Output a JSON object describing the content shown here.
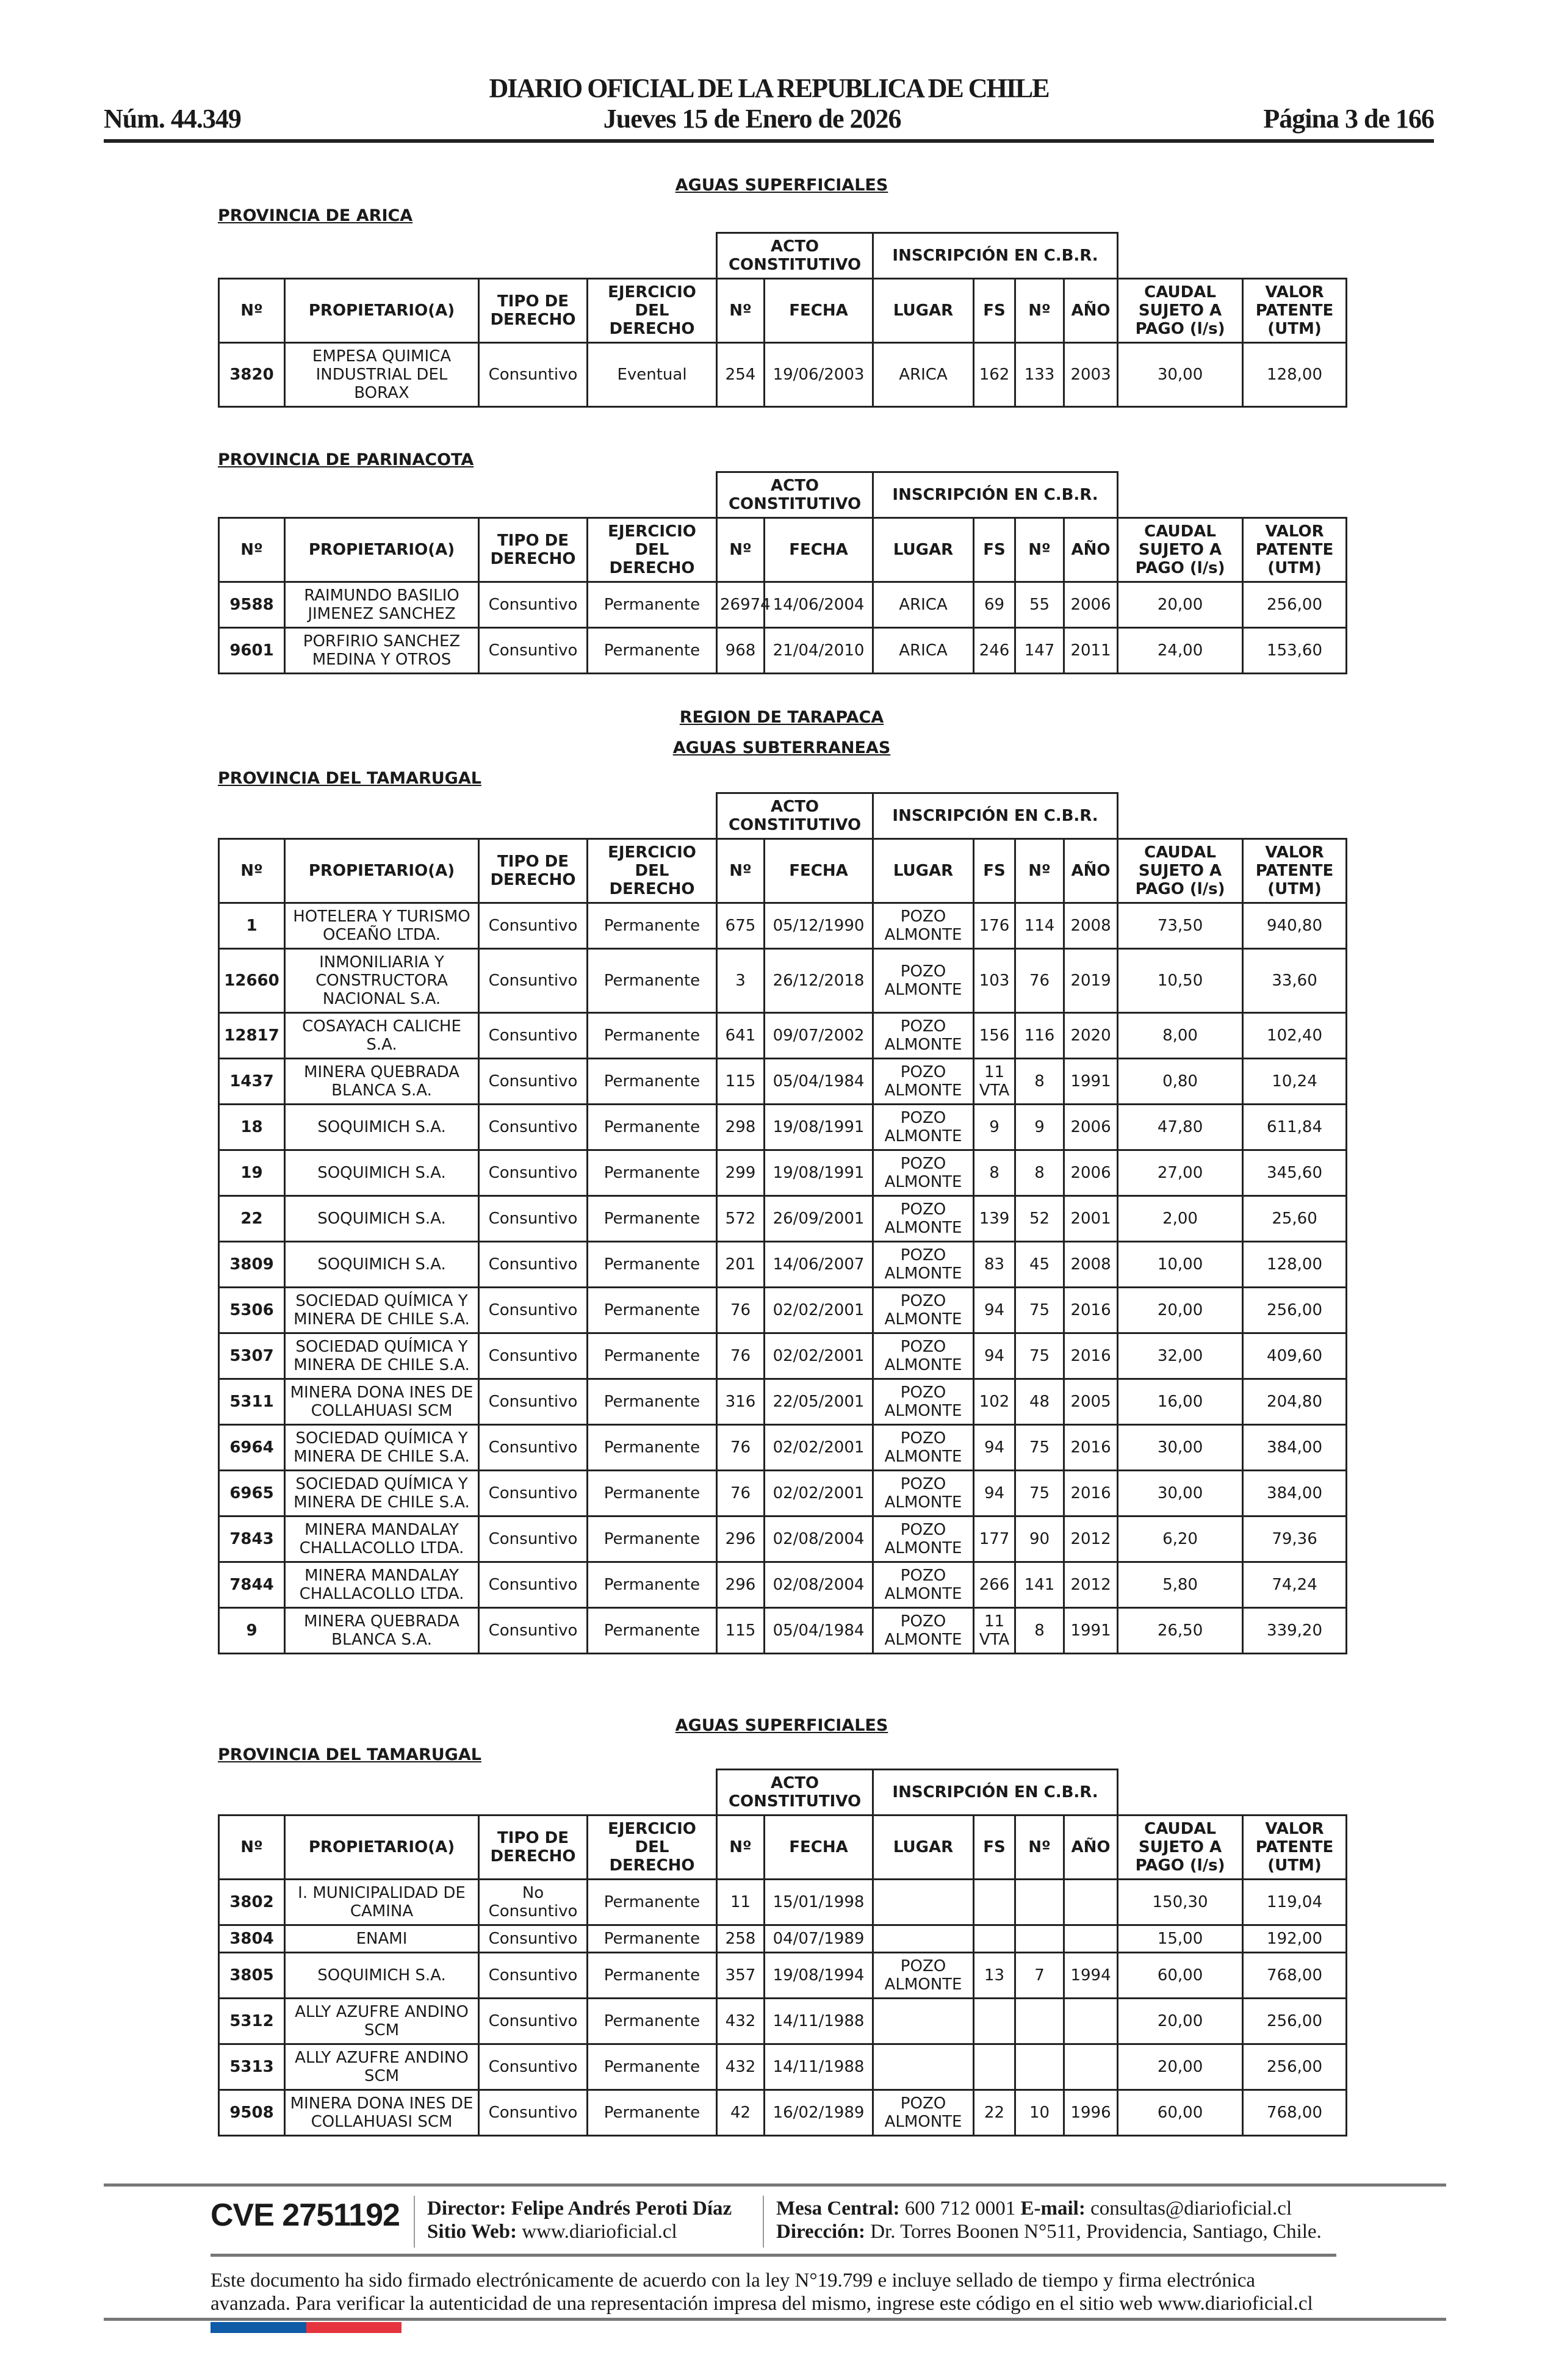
{
  "header": {
    "title": "DIARIO OFICIAL DE LA REPUBLICA DE CHILE",
    "number": "Núm. 44.349",
    "date": "Jueves 15 de Enero de 2026",
    "page": "Página 3 de 166"
  },
  "columns": {
    "group_acto": "ACTO CONSTITUTIVO",
    "group_inscripcion": "INSCRIPCIÓN EN C.B.R.",
    "headers": [
      "Nº",
      "PROPIETARIO(A)",
      "TIPO DE DERECHO",
      "EJERCICIO DEL DERECHO",
      "Nº",
      "FECHA",
      "LUGAR",
      "FS",
      "Nº",
      "AÑO",
      "CAUDAL SUJETO A PAGO (l/s)",
      "VALOR PATENTE (UTM)"
    ]
  },
  "sections": [
    {
      "heading": "AGUAS SUPERFICIALES",
      "province": "PROVINCIA DE ARICA",
      "rows": [
        [
          "3820",
          "EMPESA QUIMICA INDUSTRIAL DEL BORAX",
          "Consuntivo",
          "Eventual",
          "254",
          "19/06/2003",
          "ARICA",
          "162",
          "133",
          "2003",
          "30,00",
          "128,00"
        ]
      ]
    },
    {
      "heading": "",
      "province": "PROVINCIA DE PARINACOTA",
      "rows": [
        [
          "9588",
          "RAIMUNDO BASILIO JIMENEZ SANCHEZ",
          "Consuntivo",
          "Permanente",
          "26974",
          "14/06/2004",
          "ARICA",
          "69",
          "55",
          "2006",
          "20,00",
          "256,00"
        ],
        [
          "9601",
          "PORFIRIO SANCHEZ MEDINA Y OTROS",
          "Consuntivo",
          "Permanente",
          "968",
          "21/04/2010",
          "ARICA",
          "246",
          "147",
          "2011",
          "24,00",
          "153,60"
        ]
      ]
    },
    {
      "region": "REGION DE TARAPACA",
      "heading": "AGUAS SUBTERRANEAS",
      "province": "PROVINCIA DEL TAMARUGAL",
      "rows": [
        [
          "1",
          "HOTELERA Y TURISMO OCEAÑO LTDA.",
          "Consuntivo",
          "Permanente",
          "675",
          "05/12/1990",
          "POZO ALMONTE",
          "176",
          "114",
          "2008",
          "73,50",
          "940,80"
        ],
        [
          "12660",
          "INMONILIARIA Y CONSTRUCTORA NACIONAL S.A.",
          "Consuntivo",
          "Permanente",
          "3",
          "26/12/2018",
          "POZO ALMONTE",
          "103",
          "76",
          "2019",
          "10,50",
          "33,60"
        ],
        [
          "12817",
          "COSAYACH CALICHE S.A.",
          "Consuntivo",
          "Permanente",
          "641",
          "09/07/2002",
          "POZO ALMONTE",
          "156",
          "116",
          "2020",
          "8,00",
          "102,40"
        ],
        [
          "1437",
          "MINERA QUEBRADA BLANCA S.A.",
          "Consuntivo",
          "Permanente",
          "115",
          "05/04/1984",
          "POZO ALMONTE",
          "11 VTA",
          "8",
          "1991",
          "0,80",
          "10,24"
        ],
        [
          "18",
          "SOQUIMICH S.A.",
          "Consuntivo",
          "Permanente",
          "298",
          "19/08/1991",
          "POZO ALMONTE",
          "9",
          "9",
          "2006",
          "47,80",
          "611,84"
        ],
        [
          "19",
          "SOQUIMICH S.A.",
          "Consuntivo",
          "Permanente",
          "299",
          "19/08/1991",
          "POZO ALMONTE",
          "8",
          "8",
          "2006",
          "27,00",
          "345,60"
        ],
        [
          "22",
          "SOQUIMICH S.A.",
          "Consuntivo",
          "Permanente",
          "572",
          "26/09/2001",
          "POZO ALMONTE",
          "139",
          "52",
          "2001",
          "2,00",
          "25,60"
        ],
        [
          "3809",
          "SOQUIMICH S.A.",
          "Consuntivo",
          "Permanente",
          "201",
          "14/06/2007",
          "POZO ALMONTE",
          "83",
          "45",
          "2008",
          "10,00",
          "128,00"
        ],
        [
          "5306",
          "SOCIEDAD QUÍMICA Y MINERA DE CHILE S.A.",
          "Consuntivo",
          "Permanente",
          "76",
          "02/02/2001",
          "POZO ALMONTE",
          "94",
          "75",
          "2016",
          "20,00",
          "256,00"
        ],
        [
          "5307",
          "SOCIEDAD QUÍMICA Y MINERA DE CHILE S.A.",
          "Consuntivo",
          "Permanente",
          "76",
          "02/02/2001",
          "POZO ALMONTE",
          "94",
          "75",
          "2016",
          "32,00",
          "409,60"
        ],
        [
          "5311",
          "MINERA DONA INES DE COLLAHUASI SCM",
          "Consuntivo",
          "Permanente",
          "316",
          "22/05/2001",
          "POZO ALMONTE",
          "102",
          "48",
          "2005",
          "16,00",
          "204,80"
        ],
        [
          "6964",
          "SOCIEDAD QUÍMICA Y MINERA DE CHILE S.A.",
          "Consuntivo",
          "Permanente",
          "76",
          "02/02/2001",
          "POZO ALMONTE",
          "94",
          "75",
          "2016",
          "30,00",
          "384,00"
        ],
        [
          "6965",
          "SOCIEDAD QUÍMICA Y MINERA DE CHILE S.A.",
          "Consuntivo",
          "Permanente",
          "76",
          "02/02/2001",
          "POZO ALMONTE",
          "94",
          "75",
          "2016",
          "30,00",
          "384,00"
        ],
        [
          "7843",
          "MINERA MANDALAY CHALLACOLLO LTDA.",
          "Consuntivo",
          "Permanente",
          "296",
          "02/08/2004",
          "POZO ALMONTE",
          "177",
          "90",
          "2012",
          "6,20",
          "79,36"
        ],
        [
          "7844",
          "MINERA MANDALAY CHALLACOLLO LTDA.",
          "Consuntivo",
          "Permanente",
          "296",
          "02/08/2004",
          "POZO ALMONTE",
          "266",
          "141",
          "2012",
          "5,80",
          "74,24"
        ],
        [
          "9",
          "MINERA QUEBRADA BLANCA S.A.",
          "Consuntivo",
          "Permanente",
          "115",
          "05/04/1984",
          "POZO ALMONTE",
          "11 VTA",
          "8",
          "1991",
          "26,50",
          "339,20"
        ]
      ]
    },
    {
      "heading": "AGUAS SUPERFICIALES",
      "province": "PROVINCIA DEL TAMARUGAL",
      "rows": [
        [
          "3802",
          "I. MUNICIPALIDAD DE CAMINA",
          "No Consuntivo",
          "Permanente",
          "11",
          "15/01/1998",
          "",
          "",
          "",
          "",
          "150,30",
          "119,04"
        ],
        [
          "3804",
          "ENAMI",
          "Consuntivo",
          "Permanente",
          "258",
          "04/07/1989",
          "",
          "",
          "",
          "",
          "15,00",
          "192,00"
        ],
        [
          "3805",
          "SOQUIMICH S.A.",
          "Consuntivo",
          "Permanente",
          "357",
          "19/08/1994",
          "POZO ALMONTE",
          "13",
          "7",
          "1994",
          "60,00",
          "768,00"
        ],
        [
          "5312",
          "ALLY AZUFRE ANDINO SCM",
          "Consuntivo",
          "Permanente",
          "432",
          "14/11/1988",
          "",
          "",
          "",
          "",
          "20,00",
          "256,00"
        ],
        [
          "5313",
          "ALLY AZUFRE ANDINO SCM",
          "Consuntivo",
          "Permanente",
          "432",
          "14/11/1988",
          "",
          "",
          "",
          "",
          "20,00",
          "256,00"
        ],
        [
          "9508",
          "MINERA DONA INES DE COLLAHUASI SCM",
          "Consuntivo",
          "Permanente",
          "42",
          "16/02/1989",
          "POZO ALMONTE",
          "22",
          "10",
          "1996",
          "60,00",
          "768,00"
        ]
      ]
    }
  ],
  "footer": {
    "cve": "CVE 2751192",
    "director_label": "Director:",
    "director": "Felipe Andrés Peroti Díaz",
    "web_label": "Sitio Web:",
    "web": "www.diarioficial.cl",
    "mesa_label": "Mesa Central:",
    "mesa": "600 712 0001",
    "email_label": "E-mail:",
    "email": "consultas@diarioficial.cl",
    "address_label": "Dirección:",
    "address": "Dr. Torres Boonen N°511, Providencia, Santiago, Chile.",
    "legal": "Este documento ha sido firmado electrónicamente de acuerdo con la ley N°19.799 e incluye sellado de tiempo y firma electrónica avanzada. Para verificar la autenticidad de una representación impresa del mismo, ingrese este código en el sitio web www.diarioficial.cl",
    "flag_colors": [
      "#0f5ba7",
      "#e6343f"
    ]
  }
}
